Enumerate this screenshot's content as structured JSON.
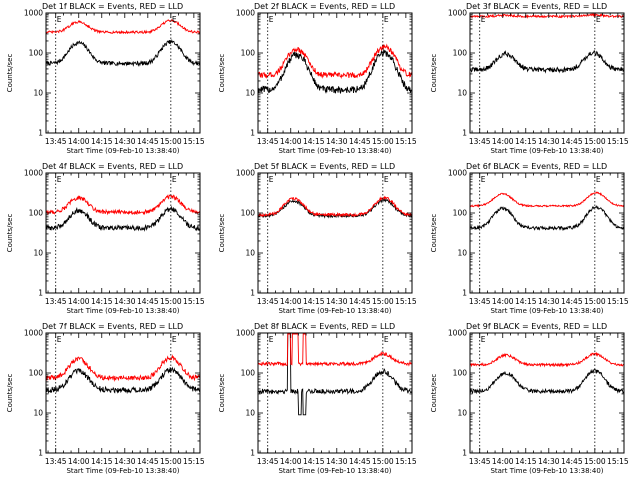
{
  "colors": {
    "events": "#000000",
    "lld": "#ff0000",
    "axis": "#000000",
    "background": "#ffffff"
  },
  "chart_data": [
    {
      "type": "line",
      "title": "Det 1f BLACK = Events, RED = LLD",
      "xlabel": "Start Time (09-Feb-10 13:38:40)",
      "ylabel": "Counts/sec",
      "yscale": "log",
      "ylim": [
        1,
        1000
      ],
      "yticks": [
        1,
        10,
        100,
        1000
      ],
      "yticklabels": [
        "1",
        "10",
        "100",
        "1000"
      ],
      "xticklabels": [
        "13:45",
        "14:00",
        "14:15",
        "14:30",
        "14:45",
        "15:00",
        "15:15"
      ],
      "xtick_minutes": [
        45,
        60,
        75,
        90,
        105,
        120,
        135
      ],
      "xlim_minutes": [
        38.67,
        139
      ],
      "markers_minutes": [
        45,
        120
      ],
      "marker_label": "E",
      "series": [
        {
          "name": "Events",
          "color": "#000000",
          "peaks": [
            [
              60,
              180
            ],
            [
              120,
              190
            ]
          ],
          "baseline": 55,
          "noise": 0.05
        },
        {
          "name": "LLD",
          "color": "#ff0000",
          "peaks": [
            [
              60,
              600
            ],
            [
              120,
              650
            ]
          ],
          "baseline": 330,
          "noise": 0.03
        }
      ]
    },
    {
      "type": "line",
      "title": "Det 2f BLACK = Events, RED = LLD",
      "xlabel": "Start Time (09-Feb-10 13:38:40)",
      "ylabel": "Counts/sec",
      "yscale": "log",
      "ylim": [
        1,
        1000
      ],
      "yticks": [
        1,
        10,
        100,
        1000
      ],
      "yticklabels": [
        "1",
        "10",
        "100",
        "1000"
      ],
      "xticklabels": [
        "13:45",
        "14:00",
        "14:15",
        "14:30",
        "14:45",
        "15:00",
        "15:15"
      ],
      "xtick_minutes": [
        45,
        60,
        75,
        90,
        105,
        120,
        135
      ],
      "xlim_minutes": [
        38.67,
        139
      ],
      "markers_minutes": [
        45,
        120
      ],
      "marker_label": "E",
      "series": [
        {
          "name": "Events",
          "color": "#000000",
          "peaks": [
            [
              64,
              90
            ],
            [
              121,
              100
            ]
          ],
          "baseline": 12,
          "noise": 0.09
        },
        {
          "name": "LLD",
          "color": "#ff0000",
          "peaks": [
            [
              64,
              125
            ],
            [
              121,
              140
            ]
          ],
          "baseline": 28,
          "noise": 0.07
        }
      ]
    },
    {
      "type": "line",
      "title": "Det 3f BLACK = Events, RED = LLD",
      "xlabel": "Start Time (09-Feb-10 13:38:40)",
      "ylabel": "Counts/sec",
      "yscale": "log",
      "ylim": [
        1,
        1000
      ],
      "yticks": [
        1,
        10,
        100,
        1000
      ],
      "yticklabels": [
        "1",
        "10",
        "100",
        "1000"
      ],
      "xticklabels": [
        "13:45",
        "14:00",
        "14:15",
        "14:30",
        "14:45",
        "15:00",
        "15:15"
      ],
      "xtick_minutes": [
        45,
        60,
        75,
        90,
        105,
        120,
        135
      ],
      "xlim_minutes": [
        38.67,
        139
      ],
      "markers_minutes": [
        45,
        120
      ],
      "marker_label": "E",
      "series": [
        {
          "name": "Events",
          "color": "#000000",
          "peaks": [
            [
              62,
              95
            ],
            [
              119,
              100
            ]
          ],
          "baseline": 38,
          "noise": 0.06
        },
        {
          "name": "LLD",
          "color": "#ff0000",
          "peaks": [
            [
              62,
              880
            ],
            [
              119,
              900
            ]
          ],
          "baseline": 820,
          "noise": 0.025
        }
      ]
    },
    {
      "type": "line",
      "title": "Det 4f BLACK = Events, RED = LLD",
      "xlabel": "Start Time (09-Feb-10 13:38:40)",
      "ylabel": "Counts/sec",
      "yscale": "log",
      "ylim": [
        1,
        1000
      ],
      "yticks": [
        1,
        10,
        100,
        1000
      ],
      "yticklabels": [
        "1",
        "10",
        "100",
        "1000"
      ],
      "xticklabels": [
        "13:45",
        "14:00",
        "14:15",
        "14:30",
        "14:45",
        "15:00",
        "15:15"
      ],
      "xtick_minutes": [
        45,
        60,
        75,
        90,
        105,
        120,
        135
      ],
      "xlim_minutes": [
        38.67,
        139
      ],
      "markers_minutes": [
        45,
        120
      ],
      "marker_label": "E",
      "series": [
        {
          "name": "Events",
          "color": "#000000",
          "peaks": [
            [
              60,
              115
            ],
            [
              120,
              125
            ]
          ],
          "baseline": 42,
          "noise": 0.06
        },
        {
          "name": "LLD",
          "color": "#ff0000",
          "peaks": [
            [
              60,
              240
            ],
            [
              120,
              260
            ]
          ],
          "baseline": 105,
          "noise": 0.05
        }
      ]
    },
    {
      "type": "line",
      "title": "Det 5f BLACK = Events, RED = LLD",
      "xlabel": "Start Time (09-Feb-10 13:38:40)",
      "ylabel": "Counts/sec",
      "yscale": "log",
      "ylim": [
        1,
        1000
      ],
      "yticks": [
        1,
        10,
        100,
        1000
      ],
      "yticklabels": [
        "1",
        "10",
        "100",
        "1000"
      ],
      "xticklabels": [
        "13:45",
        "14:00",
        "14:15",
        "14:30",
        "14:45",
        "15:00",
        "15:15"
      ],
      "xtick_minutes": [
        45,
        60,
        75,
        90,
        105,
        120,
        135
      ],
      "xlim_minutes": [
        38.67,
        139
      ],
      "markers_minutes": [
        45,
        120
      ],
      "marker_label": "E",
      "series": [
        {
          "name": "Events",
          "color": "#000000",
          "peaks": [
            [
              62,
              200
            ],
            [
              121,
              210
            ]
          ],
          "baseline": 85,
          "noise": 0.035
        },
        {
          "name": "LLD",
          "color": "#ff0000",
          "peaks": [
            [
              62,
              230
            ],
            [
              121,
              240
            ]
          ],
          "baseline": 90,
          "noise": 0.035
        }
      ]
    },
    {
      "type": "line",
      "title": "Det 6f BLACK = Events, RED = LLD",
      "xlabel": "Start Time (09-Feb-10 13:38:40)",
      "ylabel": "Counts/sec",
      "yscale": "log",
      "ylim": [
        1,
        1000
      ],
      "yticks": [
        1,
        10,
        100,
        1000
      ],
      "yticklabels": [
        "1",
        "10",
        "100",
        "1000"
      ],
      "xticklabels": [
        "13:45",
        "14:00",
        "14:15",
        "14:30",
        "14:45",
        "15:00",
        "15:15"
      ],
      "xtick_minutes": [
        45,
        60,
        75,
        90,
        105,
        120,
        135
      ],
      "xlim_minutes": [
        38.67,
        139
      ],
      "markers_minutes": [
        45,
        120
      ],
      "marker_label": "E",
      "series": [
        {
          "name": "Events",
          "color": "#000000",
          "peaks": [
            [
              60,
              130
            ],
            [
              121,
              140
            ]
          ],
          "baseline": 42,
          "noise": 0.04
        },
        {
          "name": "LLD",
          "color": "#ff0000",
          "peaks": [
            [
              60,
              300
            ],
            [
              121,
              320
            ]
          ],
          "baseline": 150,
          "noise": 0.02
        }
      ]
    },
    {
      "type": "line",
      "title": "Det 7f BLACK = Events, RED = LLD",
      "xlabel": "Start Time (09-Feb-10 13:38:40)",
      "ylabel": "Counts/sec",
      "yscale": "log",
      "ylim": [
        1,
        1000
      ],
      "yticks": [
        1,
        10,
        100,
        1000
      ],
      "yticklabels": [
        "1",
        "10",
        "100",
        "1000"
      ],
      "xticklabels": [
        "13:45",
        "14:00",
        "14:15",
        "14:30",
        "14:45",
        "15:00",
        "15:15"
      ],
      "xtick_minutes": [
        45,
        60,
        75,
        90,
        105,
        120,
        135
      ],
      "xlim_minutes": [
        38.67,
        139
      ],
      "markers_minutes": [
        45,
        120
      ],
      "marker_label": "E",
      "series": [
        {
          "name": "Events",
          "color": "#000000",
          "peaks": [
            [
              60,
              110
            ],
            [
              120,
              120
            ]
          ],
          "baseline": 38,
          "noise": 0.07
        },
        {
          "name": "LLD",
          "color": "#ff0000",
          "peaks": [
            [
              60,
              220
            ],
            [
              120,
              240
            ]
          ],
          "baseline": 75,
          "noise": 0.06
        }
      ]
    },
    {
      "type": "line",
      "title": "Det 8f BLACK = Events, RED = LLD",
      "xlabel": "Start Time (09-Feb-10 13:38:40)",
      "ylabel": "Counts/sec",
      "yscale": "log",
      "ylim": [
        1,
        1000
      ],
      "yticks": [
        1,
        10,
        100,
        1000
      ],
      "yticklabels": [
        "1",
        "10",
        "100",
        "1000"
      ],
      "xticklabels": [
        "13:45",
        "14:00",
        "14:15",
        "14:30",
        "14:45",
        "15:00",
        "15:15"
      ],
      "xtick_minutes": [
        45,
        60,
        75,
        90,
        105,
        120,
        135
      ],
      "xlim_minutes": [
        38.67,
        139
      ],
      "markers_minutes": [
        45,
        120
      ],
      "marker_label": "E",
      "series": [
        {
          "name": "Events",
          "color": "#000000",
          "peaks": [
            [
              120,
              110
            ]
          ],
          "baseline": 35,
          "noise": 0.06,
          "spikes": [
            [
              58,
              60,
              "hi"
            ],
            [
              65,
              67,
              "lo"
            ],
            [
              68,
              70,
              "lo"
            ]
          ]
        },
        {
          "name": "LLD",
          "color": "#ff0000",
          "peaks": [
            [
              120,
              300
            ]
          ],
          "baseline": 170,
          "noise": 0.04,
          "spikes": [
            [
              58,
              60,
              "hi"
            ],
            [
              61,
              65,
              "hi"
            ],
            [
              68,
              70,
              "hi"
            ]
          ]
        }
      ]
    },
    {
      "type": "line",
      "title": "Det 9f BLACK = Events, RED = LLD",
      "xlabel": "Start Time (09-Feb-10 13:38:40)",
      "ylabel": "Counts/sec",
      "yscale": "log",
      "ylim": [
        1,
        1000
      ],
      "yticks": [
        1,
        10,
        100,
        1000
      ],
      "yticklabels": [
        "1",
        "10",
        "100",
        "1000"
      ],
      "xticklabels": [
        "13:45",
        "14:00",
        "14:15",
        "14:30",
        "14:45",
        "15:00",
        "15:15"
      ],
      "xtick_minutes": [
        45,
        60,
        75,
        90,
        105,
        120,
        135
      ],
      "xlim_minutes": [
        38.67,
        139
      ],
      "markers_minutes": [
        45,
        120
      ],
      "marker_label": "E",
      "series": [
        {
          "name": "Events",
          "color": "#000000",
          "peaks": [
            [
              62,
              100
            ],
            [
              120,
              110
            ]
          ],
          "baseline": 35,
          "noise": 0.05
        },
        {
          "name": "LLD",
          "color": "#ff0000",
          "peaks": [
            [
              62,
              280
            ],
            [
              120,
              300
            ]
          ],
          "baseline": 160,
          "noise": 0.03
        }
      ]
    }
  ]
}
